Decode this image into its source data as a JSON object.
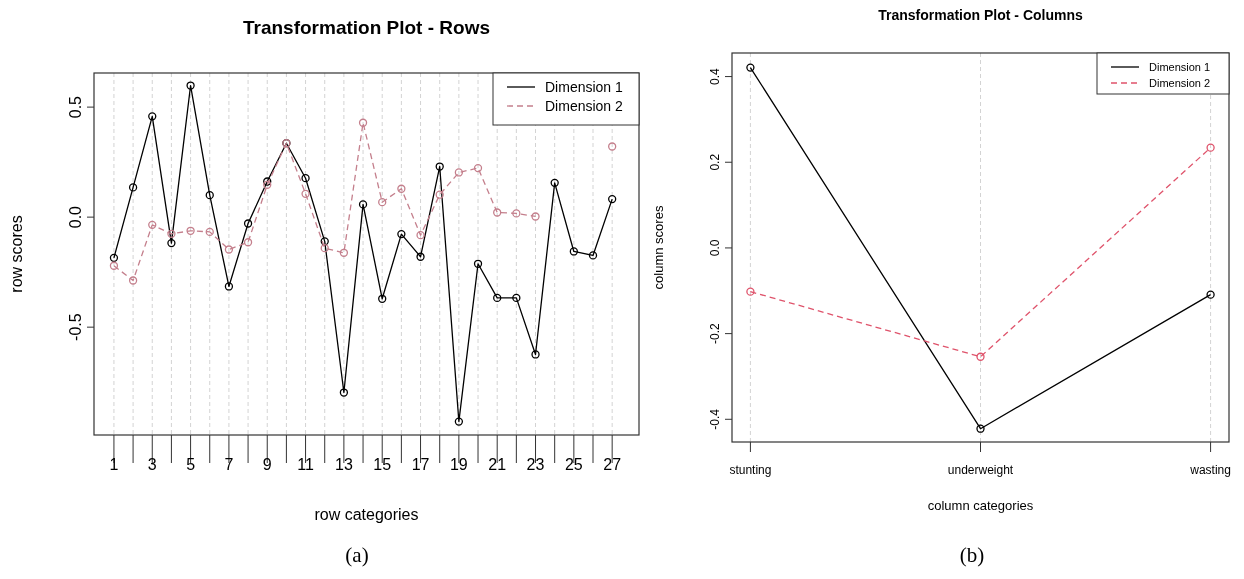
{
  "chart_data": [
    {
      "type": "line",
      "title": "Transformation Plot - Rows",
      "xlabel": "row categories",
      "ylabel": "row scores",
      "x": [
        1,
        2,
        3,
        4,
        5,
        6,
        7,
        8,
        9,
        10,
        11,
        12,
        13,
        14,
        15,
        16,
        17,
        18,
        19,
        20,
        21,
        22,
        23,
        24,
        25,
        26,
        27
      ],
      "series": [
        {
          "name": "Dimension 1",
          "color": "#000000",
          "line_style": "solid",
          "values": [
            -0.185,
            0.135,
            0.458,
            -0.118,
            0.598,
            0.1,
            -0.315,
            -0.029,
            0.162,
            0.336,
            0.177,
            -0.11,
            -0.797,
            0.058,
            -0.371,
            -0.077,
            -0.18,
            0.23,
            -0.929,
            -0.212,
            -0.367,
            -0.367,
            -0.624,
            0.156,
            -0.156,
            -0.174,
            0.082
          ]
        },
        {
          "name": "Dimension 2",
          "color": "#c47f8c",
          "line_style": "dashed",
          "values": [
            -0.221,
            -0.288,
            -0.035,
            -0.076,
            -0.062,
            -0.067,
            -0.147,
            -0.114,
            0.147,
            0.336,
            0.106,
            -0.141,
            -0.162,
            0.429,
            0.068,
            0.129,
            -0.082,
            0.102,
            0.203,
            0.223,
            0.021,
            0.017,
            0.003,
            null,
            null,
            null,
            0.321
          ]
        }
      ],
      "xlim": [
        -0.04,
        28.4
      ],
      "xticks": [
        1,
        {
          "value": 2,
          "label": null
        },
        3,
        {
          "value": 4,
          "label": null
        },
        5,
        {
          "value": 6,
          "label": null
        },
        7,
        {
          "value": 8,
          "label": null
        },
        9,
        {
          "value": 10,
          "label": null
        },
        11,
        {
          "value": 12,
          "label": null
        },
        13,
        {
          "value": 14,
          "label": null
        },
        15,
        {
          "value": 16,
          "label": null
        },
        17,
        {
          "value": 18,
          "label": null
        },
        19,
        {
          "value": 20,
          "label": null
        },
        21,
        {
          "value": 22,
          "label": null
        },
        23,
        {
          "value": 24,
          "label": null
        },
        25,
        {
          "value": 26,
          "label": null
        },
        27
      ],
      "ylim": [
        -0.99,
        0.655
      ],
      "yticks": [
        -0.5,
        {
          "value": 0,
          "label": "0.0"
        },
        0.5
      ],
      "grid": "x",
      "legend": "top right",
      "marker": "circle",
      "annotations": [
        "(a)"
      ]
    },
    {
      "type": "line",
      "title": "Transformation Plot - Columns",
      "xlabel": "column categories",
      "ylabel": "column scores",
      "categories": [
        "stunting",
        "underweight",
        "wasting"
      ],
      "series": [
        {
          "name": "Dimension 1",
          "color": "#000000",
          "line_style": "solid",
          "values": [
            0.421,
            -0.422,
            -0.109
          ]
        },
        {
          "name": "Dimension 2",
          "color": "#df536b",
          "line_style": "dashed",
          "values": [
            -0.102,
            -0.254,
            0.234
          ]
        }
      ],
      "ylim": [
        -0.453,
        0.455
      ],
      "yticks": [
        -0.4,
        -0.2,
        {
          "value": 0,
          "label": "0.0"
        },
        0.2,
        0.4
      ],
      "grid": "x",
      "legend": "top right",
      "marker": "circle",
      "annotations": [
        "(b)"
      ]
    }
  ]
}
